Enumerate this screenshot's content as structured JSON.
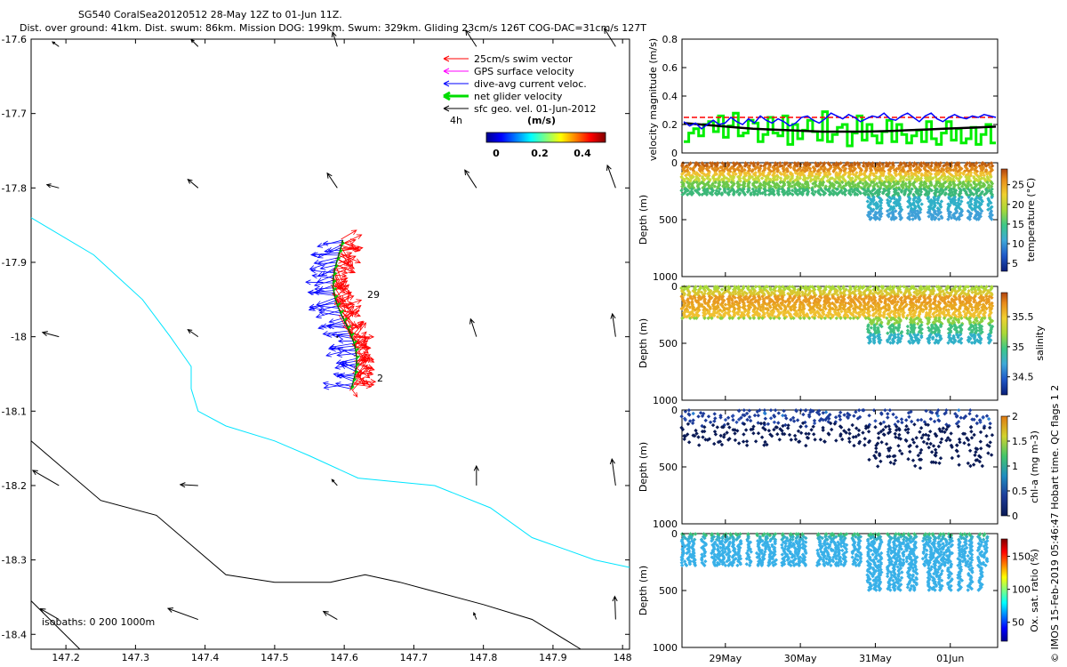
{
  "header": {
    "title": "SG540 CoralSea20120512 28-May 12Z to 01-Jun 11Z.",
    "subtitle": "Dist. over ground: 41km. Dist. swum: 86km. Mission DOG: 199km. Swum: 329km. Gliding 23cm/s 126T COG-DAC=31cm/s 127T"
  },
  "side_note": "© IMOS 15-Feb-2019 05:46:47 Hobart time. QC flags 1  2",
  "colors": {
    "swim": "#ff0000",
    "gps": "#ff00ff",
    "dac": "#0000ff",
    "net": "#00cc00",
    "sfc": "#000000",
    "isobath_0": "#00e5ff",
    "isobath_200": "#000000",
    "velocity_green": "#00ee00",
    "velocity_red": "#ff0000",
    "velocity_blue": "#0000ff"
  },
  "chart_data": [
    {
      "type": "scatter",
      "name": "map",
      "xlim": [
        147.15,
        148.01
      ],
      "ylim": [
        -18.42,
        -17.6
      ],
      "x_ticks": [
        "147.2",
        "147.3",
        "147.4",
        "147.5",
        "147.6",
        "147.7",
        "147.8",
        "147.9",
        "148"
      ],
      "y_ticks": [
        "-17.6",
        "-17.7",
        "-17.8",
        "-17.9",
        "-18",
        "-18.1",
        "-18.2",
        "-18.3",
        "-18.4"
      ],
      "legend": {
        "items": [
          "25cm/s swim vector",
          "GPS surface velocity",
          "dive-avg current veloc.",
          "net glider velocity",
          "sfc geo. vel. 01-Jun-2012"
        ],
        "time_label": "4h",
        "unit_label": "(m/s)",
        "colorbar_ticks": [
          "0",
          "0.2",
          "0.4"
        ],
        "colorbar_range": [
          0,
          0.5
        ]
      },
      "isobath_label": "isobaths: 0   200  1000m",
      "track_labels": {
        "end": "29",
        "start": "2"
      },
      "track_lat_range": [
        -18.07,
        -17.87
      ],
      "sfc_vectors": [
        {
          "lon": 147.19,
          "lat": -17.61,
          "ang": 216,
          "len": 9
        },
        {
          "lon": 147.39,
          "lat": -17.61,
          "ang": 225,
          "len": 11
        },
        {
          "lon": 147.59,
          "lat": -17.61,
          "ang": 252,
          "len": 17
        },
        {
          "lon": 147.79,
          "lat": -17.61,
          "ang": 237,
          "len": 22
        },
        {
          "lon": 147.99,
          "lat": -17.61,
          "ang": 238,
          "len": 24
        },
        {
          "lon": 147.19,
          "lat": -17.8,
          "ang": 195,
          "len": 14
        },
        {
          "lon": 147.39,
          "lat": -17.8,
          "ang": 220,
          "len": 15
        },
        {
          "lon": 147.59,
          "lat": -17.8,
          "ang": 236,
          "len": 20
        },
        {
          "lon": 147.79,
          "lat": -17.8,
          "ang": 237,
          "len": 24
        },
        {
          "lon": 147.99,
          "lat": -17.8,
          "ang": 250,
          "len": 27
        },
        {
          "lon": 147.19,
          "lat": -18.0,
          "ang": 195,
          "len": 19
        },
        {
          "lon": 147.39,
          "lat": -18.0,
          "ang": 215,
          "len": 14
        },
        {
          "lon": 147.59,
          "lat": -18.0,
          "ang": 0,
          "len": 0
        },
        {
          "lon": 147.79,
          "lat": -18.0,
          "ang": 252,
          "len": 21
        },
        {
          "lon": 147.99,
          "lat": -18.0,
          "ang": 262,
          "len": 26
        },
        {
          "lon": 147.19,
          "lat": -18.2,
          "ang": 210,
          "len": 34
        },
        {
          "lon": 147.39,
          "lat": -18.2,
          "ang": 183,
          "len": 20
        },
        {
          "lon": 147.59,
          "lat": -18.2,
          "ang": 228,
          "len": 9
        },
        {
          "lon": 147.79,
          "lat": -18.2,
          "ang": 270,
          "len": 22
        },
        {
          "lon": 147.99,
          "lat": -18.2,
          "ang": 262,
          "len": 30
        },
        {
          "lon": 147.19,
          "lat": -18.38,
          "ang": 210,
          "len": 24
        },
        {
          "lon": 147.39,
          "lat": -18.38,
          "ang": 200,
          "len": 36
        },
        {
          "lon": 147.59,
          "lat": -18.38,
          "ang": 210,
          "len": 18
        },
        {
          "lon": 147.79,
          "lat": -18.38,
          "ang": 248,
          "len": 8
        },
        {
          "lon": 147.99,
          "lat": -18.38,
          "ang": 268,
          "len": 26
        }
      ],
      "isobath_0_path": [
        [
          147.15,
          -17.84
        ],
        [
          147.24,
          -17.89
        ],
        [
          147.31,
          -17.95
        ],
        [
          147.35,
          -18.0
        ],
        [
          147.38,
          -18.04
        ],
        [
          147.38,
          -18.07
        ],
        [
          147.39,
          -18.1
        ],
        [
          147.43,
          -18.12
        ],
        [
          147.5,
          -18.14
        ],
        [
          147.55,
          -18.16
        ],
        [
          147.62,
          -18.19
        ],
        [
          147.73,
          -18.2
        ],
        [
          147.81,
          -18.23
        ],
        [
          147.87,
          -18.27
        ],
        [
          147.96,
          -18.3
        ],
        [
          148.01,
          -18.31
        ]
      ],
      "isobath_200_path": [
        [
          147.15,
          -18.14
        ],
        [
          147.25,
          -18.22
        ],
        [
          147.33,
          -18.24
        ],
        [
          147.43,
          -18.32
        ],
        [
          147.5,
          -18.33
        ],
        [
          147.58,
          -18.33
        ],
        [
          147.63,
          -18.32
        ],
        [
          147.68,
          -18.33
        ],
        [
          147.72,
          -18.34
        ],
        [
          147.8,
          -18.36
        ],
        [
          147.87,
          -18.38
        ],
        [
          147.94,
          -18.42
        ]
      ],
      "isobath_1000_path": [
        [
          147.15,
          -18.355
        ],
        [
          147.22,
          -18.42
        ]
      ]
    },
    {
      "type": "line",
      "name": "velocity",
      "ylabel": "velocity magnitude (m/s)",
      "ylim": [
        0,
        0.8
      ],
      "y_ticks": [
        "0",
        "0.2",
        "0.4",
        "0.6",
        "0.8"
      ],
      "xlim": [
        28.5,
        32.5
      ],
      "dashed_red_value": 0.25,
      "net_green_series": [
        0.08,
        0.14,
        0.17,
        0.12,
        0.2,
        0.22,
        0.15,
        0.26,
        0.11,
        0.19,
        0.28,
        0.12,
        0.14,
        0.23,
        0.21,
        0.08,
        0.13,
        0.25,
        0.14,
        0.12,
        0.26,
        0.06,
        0.2,
        0.1,
        0.16,
        0.23,
        0.15,
        0.09,
        0.29,
        0.08,
        0.13,
        0.18,
        0.2,
        0.05,
        0.14,
        0.26,
        0.09,
        0.2,
        0.12,
        0.07,
        0.15,
        0.23,
        0.08,
        0.2,
        0.13,
        0.07,
        0.12,
        0.16,
        0.08,
        0.22,
        0.1,
        0.06,
        0.14,
        0.22,
        0.09,
        0.17,
        0.07,
        0.1,
        0.18,
        0.06,
        0.13,
        0.2,
        0.07
      ],
      "dac_blue_series": [
        0.22,
        0.19,
        0.21,
        0.17,
        0.2,
        0.23,
        0.2,
        0.21,
        0.25,
        0.22,
        0.2,
        0.24,
        0.21,
        0.26,
        0.23,
        0.21,
        0.24,
        0.22,
        0.19,
        0.21,
        0.25,
        0.26,
        0.23,
        0.21,
        0.24,
        0.28,
        0.26,
        0.24,
        0.27,
        0.25,
        0.22,
        0.24,
        0.26,
        0.25,
        0.28,
        0.24,
        0.23,
        0.26,
        0.28,
        0.25,
        0.22,
        0.26,
        0.28,
        0.24,
        0.22,
        0.25,
        0.27,
        0.25,
        0.24,
        0.26,
        0.25,
        0.27,
        0.26,
        0.25
      ],
      "sfc_black_series": [
        0.21,
        0.2,
        0.19,
        0.18,
        0.17,
        0.165,
        0.16,
        0.155,
        0.15,
        0.15,
        0.15,
        0.152,
        0.155,
        0.16,
        0.165,
        0.17,
        0.175,
        0.18,
        0.185
      ]
    },
    {
      "type": "scatter",
      "name": "temperature",
      "ylabel": "Depth (m)",
      "cblabel": "temperature (°C)",
      "ylim": [
        0,
        1000
      ],
      "y_ticks": [
        "0",
        "500",
        "1000"
      ],
      "cb_ticks": [
        "25",
        "20",
        "15",
        "10",
        "5"
      ],
      "cb_range": [
        3,
        29
      ],
      "profile_max_depth": {
        "early": 290,
        "late": 500
      }
    },
    {
      "type": "scatter",
      "name": "salinity",
      "ylabel": "Depth (m)",
      "cblabel": "salinity",
      "ylim": [
        0,
        1000
      ],
      "y_ticks": [
        "0",
        "500",
        "1000"
      ],
      "cb_ticks": [
        "35.5",
        "35",
        "34.5"
      ],
      "cb_range": [
        34.2,
        35.9
      ],
      "profile_max_depth": {
        "early": 290,
        "late": 500
      }
    },
    {
      "type": "scatter",
      "name": "chlorophyll",
      "ylabel": "Depth (m)",
      "cblabel": "chl-a (mg m-3)",
      "ylim": [
        0,
        1000
      ],
      "y_ticks": [
        "0",
        "500",
        "1000"
      ],
      "cb_ticks": [
        "2",
        "1.5",
        "1",
        "0.5",
        "0"
      ],
      "cb_range": [
        0,
        2
      ],
      "profile_max_depth": {
        "early": 290,
        "late": 500
      }
    },
    {
      "type": "scatter",
      "name": "oxygen",
      "ylabel": "Depth (m)",
      "cblabel": "Ox. sat. ratio (%)",
      "ylim": [
        0,
        1000
      ],
      "y_ticks": [
        "0",
        "500",
        "1000"
      ],
      "cb_ticks": [
        "150",
        "100",
        "50"
      ],
      "cb_range": [
        20,
        175
      ],
      "xlim": [
        28.5,
        32.5
      ],
      "x_ticks": [
        "29May",
        "30May",
        "31May",
        "01Jun"
      ],
      "x_tick_values": [
        29.05,
        30.0,
        30.95,
        31.9
      ],
      "profile_max_depth": {
        "early": 290,
        "late": 500
      }
    }
  ]
}
